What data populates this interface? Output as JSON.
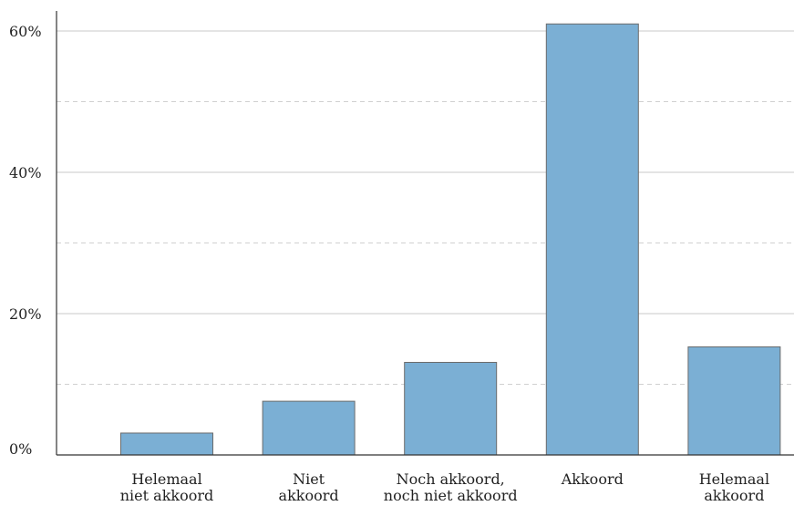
{
  "chart_data": {
    "type": "bar",
    "categories": [
      [
        "Helemaal",
        "niet akkoord"
      ],
      [
        "Niet",
        "akkoord"
      ],
      [
        "Noch akkoord,",
        "noch niet akkoord"
      ],
      [
        "Akkoord"
      ],
      [
        "Helemaal",
        "akkoord"
      ]
    ],
    "values": [
      3.1,
      7.6,
      13.1,
      61.0,
      15.3
    ],
    "title": "",
    "xlabel": "",
    "ylabel": "",
    "ylim": [
      0,
      60
    ],
    "yticks": [
      0,
      20,
      40,
      60
    ],
    "ytick_labels": [
      "0%",
      "20%",
      "40%",
      "60%"
    ],
    "minor_gridlines": [
      10,
      30,
      50
    ],
    "grid": true,
    "bar_color": "#7bafd4"
  }
}
